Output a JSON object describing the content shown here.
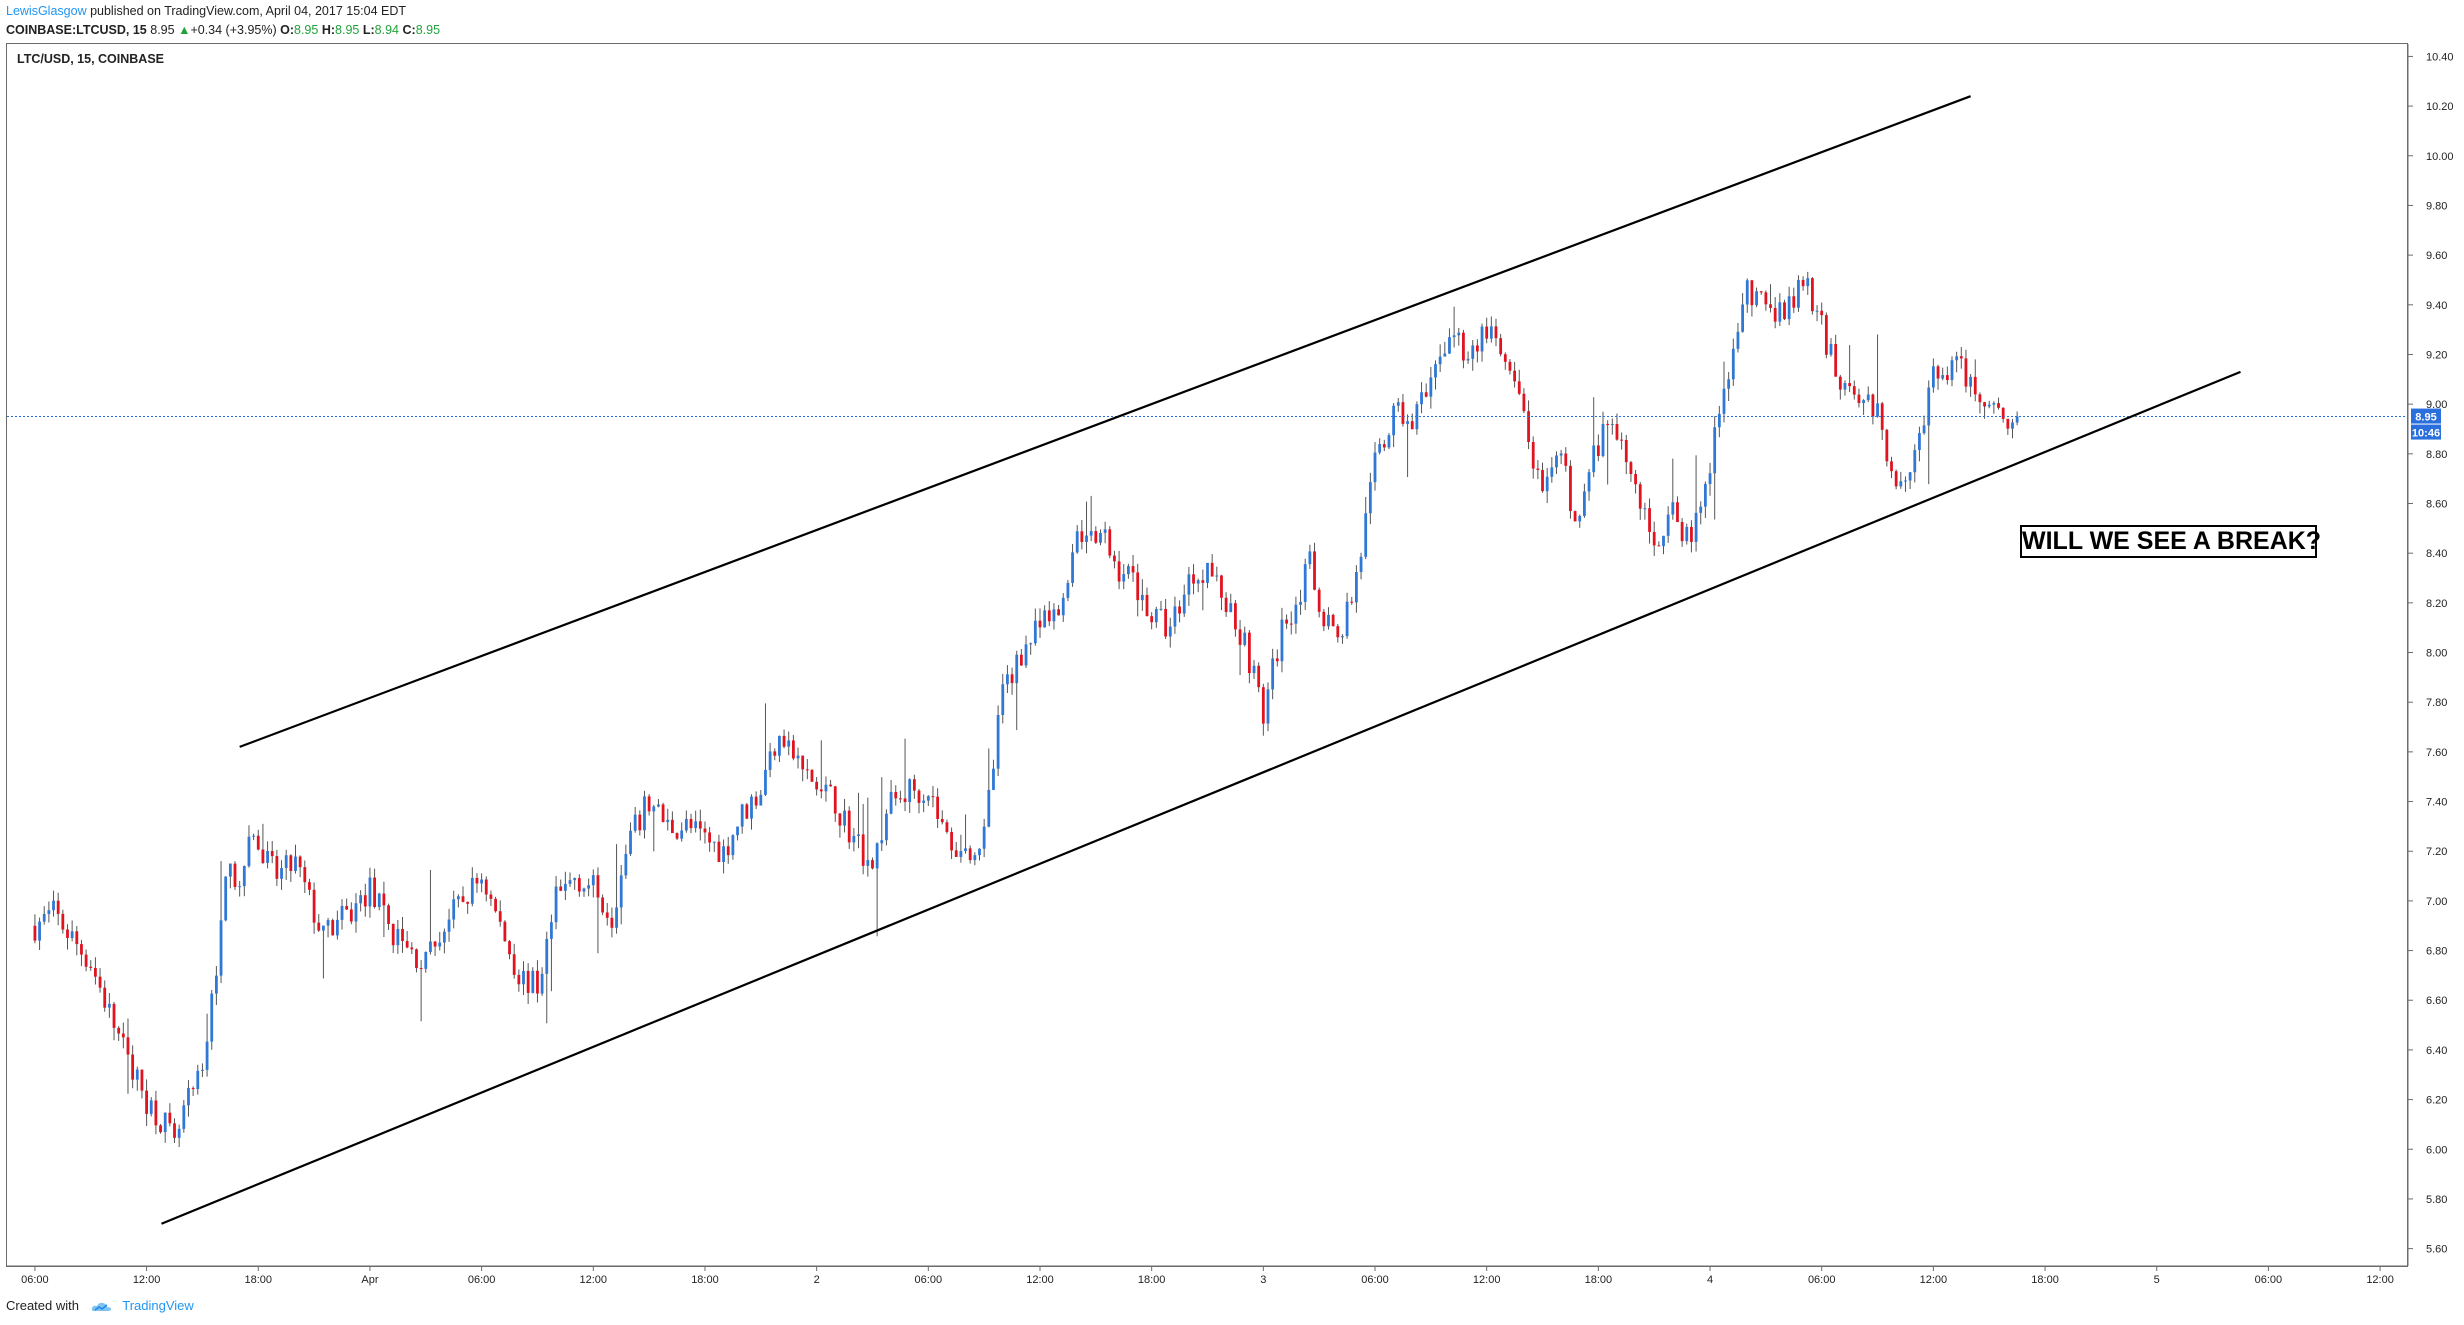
{
  "header": {
    "author": "LewisGlasgow",
    "published_text": " published on TradingView.com, April 04, 2017 15:04 EDT",
    "symbol": "COINBASE:LTCUSD, 15",
    "last": "8.95",
    "change": "+0.34 (+3.95%)",
    "o_label": "O:",
    "o_value": "8.95",
    "h_label": "H:",
    "h_value": "8.95",
    "l_label": "L:",
    "l_value": "8.94",
    "c_label": "C:",
    "c_value": "8.95",
    "arrow_icon": "triangle-up-icon"
  },
  "chart_label": "LTC/USD, 15, COINBASE",
  "annotation": "WILL WE SEE A BREAK?",
  "footer": {
    "created_with": "Created with",
    "brand": "TradingView",
    "logo_icon": "tradingview-cloud-icon"
  },
  "price_badges": {
    "last_price": "8.95",
    "countdown": "10:46"
  },
  "colors": {
    "up": "#2f78d6",
    "down": "#e0131f",
    "last_price_line": "#2a6fdb",
    "trendline": "#000000"
  },
  "chart_data": {
    "type": "candlestick",
    "ylim": [
      5.53,
      10.45
    ],
    "y_ticks": [
      "5.60",
      "5.80",
      "6.00",
      "6.20",
      "6.40",
      "6.60",
      "6.80",
      "7.00",
      "7.20",
      "7.40",
      "7.60",
      "7.80",
      "8.00",
      "8.20",
      "8.40",
      "8.60",
      "8.80",
      "9.00",
      "9.20",
      "9.40",
      "9.60",
      "9.80",
      "10.00",
      "10.20",
      "10.40"
    ],
    "x_ticks": [
      "06:00",
      "12:00",
      "18:00",
      "Apr",
      "06:00",
      "12:00",
      "18:00",
      "2",
      "06:00",
      "12:00",
      "18:00",
      "3",
      "06:00",
      "12:00",
      "18:00",
      "4",
      "06:00",
      "12:00",
      "18:00",
      "5",
      "06:00",
      "12:00"
    ],
    "x_range_hours": [
      -1.5,
      127.5
    ],
    "close_series": {
      "hours": [
        0,
        1,
        2,
        3,
        4,
        5,
        6,
        7,
        7.5,
        8,
        9,
        10,
        10.5,
        11,
        11.5,
        12,
        13,
        14,
        15,
        15.5,
        16,
        17,
        18,
        19,
        20,
        21,
        22,
        23,
        24,
        25,
        26,
        27,
        28,
        29,
        30,
        31,
        32,
        33,
        34,
        35,
        36,
        37,
        38,
        39,
        40,
        41,
        42,
        43,
        44,
        45,
        46,
        47,
        48,
        49,
        50,
        51,
        52,
        53,
        54,
        55,
        56,
        57,
        57.5,
        58,
        59,
        60,
        61,
        62,
        63,
        64,
        65,
        66,
        67,
        68,
        68.5,
        69,
        70,
        71,
        72,
        73,
        74,
        75,
        76,
        77,
        78,
        79,
        80,
        81,
        82,
        82.5,
        83,
        84,
        85,
        86,
        87,
        88,
        89,
        90,
        91,
        92,
        93,
        94,
        95,
        96,
        97,
        98,
        99,
        100,
        101,
        102,
        103,
        104,
        105,
        106,
        106.5
      ],
      "values": [
        6.9,
        6.95,
        6.85,
        6.75,
        6.55,
        6.35,
        6.2,
        6.1,
        6.0,
        6.15,
        6.3,
        6.9,
        7.2,
        7.0,
        7.3,
        7.2,
        7.1,
        7.15,
        6.95,
        6.85,
        6.9,
        6.95,
        7.05,
        6.9,
        6.8,
        6.75,
        6.9,
        7.0,
        7.1,
        6.9,
        6.7,
        6.65,
        7.0,
        7.1,
        7.05,
        6.95,
        7.25,
        7.4,
        7.3,
        7.3,
        7.25,
        7.2,
        7.35,
        7.45,
        7.7,
        7.55,
        7.45,
        7.4,
        7.25,
        7.15,
        7.4,
        7.45,
        7.45,
        7.25,
        7.2,
        7.25,
        7.85,
        8.0,
        8.1,
        8.15,
        8.5,
        8.45,
        8.45,
        8.35,
        8.3,
        8.15,
        8.1,
        8.3,
        8.35,
        8.2,
        8.05,
        7.75,
        8.1,
        8.25,
        8.35,
        8.2,
        8.05,
        8.3,
        8.75,
        8.95,
        8.95,
        9.05,
        9.3,
        9.2,
        9.3,
        9.15,
        8.95,
        8.6,
        8.8,
        8.6,
        8.55,
        8.85,
        8.9,
        8.65,
        8.45,
        8.55,
        8.45,
        8.75,
        9.15,
        9.45,
        9.4,
        9.35,
        9.5,
        9.3,
        9.1,
        9.05,
        8.95,
        8.7,
        8.8,
        9.1,
        9.15,
        9.1,
        9.0,
        8.95,
        8.95
      ],
      "ohlc_last": {
        "o": 8.95,
        "h": 8.95,
        "l": 8.94,
        "c": 8.95
      }
    },
    "last_price": 8.95,
    "channel": {
      "upper": [
        {
          "hour": 11,
          "price": 7.62
        },
        {
          "hour": 104,
          "price": 10.24
        }
      ],
      "lower": [
        {
          "hour": 6.8,
          "price": 5.7
        },
        {
          "hour": 118.5,
          "price": 9.13
        }
      ]
    }
  }
}
